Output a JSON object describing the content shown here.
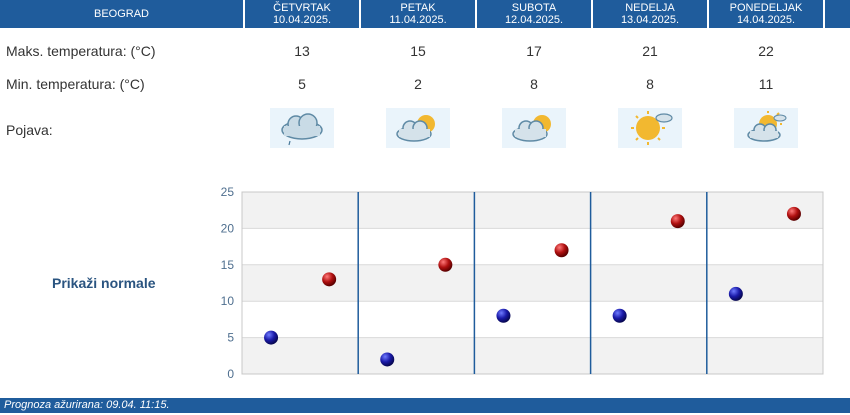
{
  "header": {
    "city": "BEOGRAD",
    "days": [
      {
        "name": "ČETVRTAK",
        "date": "10.04.2025."
      },
      {
        "name": "PETAK",
        "date": "11.04.2025."
      },
      {
        "name": "SUBOTA",
        "date": "12.04.2025."
      },
      {
        "name": "NEDELJA",
        "date": "13.04.2025."
      },
      {
        "name": "PONEDELJAK",
        "date": "14.04.2025."
      }
    ]
  },
  "rows": {
    "max_label": "Maks. temperatura: (°C)",
    "min_label": "Min. temperatura: (°C)",
    "weather_label": "Pojava:",
    "max_values": [
      "13",
      "15",
      "17",
      "21",
      "22"
    ],
    "min_values": [
      "5",
      "2",
      "8",
      "8",
      "11"
    ],
    "weather_icons": [
      "cloud-drizzle-icon",
      "sun-cloud-icon",
      "sun-cloud-icon",
      "sun-mostly-sunny-icon",
      "sun-cloud-icon"
    ]
  },
  "side_title": "Prikaži normale",
  "chart_data": {
    "type": "scatter",
    "categories": [
      "ČETVRTAK",
      "PETAK",
      "SUBOTA",
      "NEDELJA",
      "PONEDELJAK"
    ],
    "ylim": [
      0,
      25
    ],
    "yticks": [
      "0",
      "5",
      "10",
      "15",
      "20",
      "25"
    ],
    "series": [
      {
        "values": [
          5,
          2,
          8,
          8,
          11
        ],
        "color": "#1a1aa8"
      },
      {
        "values": [
          13,
          15,
          17,
          21,
          22
        ],
        "color": "#b01010"
      }
    ]
  },
  "footer": {
    "text": "Prognoza ažurirana:  09.04. 11:15."
  },
  "colors": {
    "header_bg": "#1f5c9c",
    "min_dot": "#1a1aa8",
    "max_dot": "#b01010"
  }
}
